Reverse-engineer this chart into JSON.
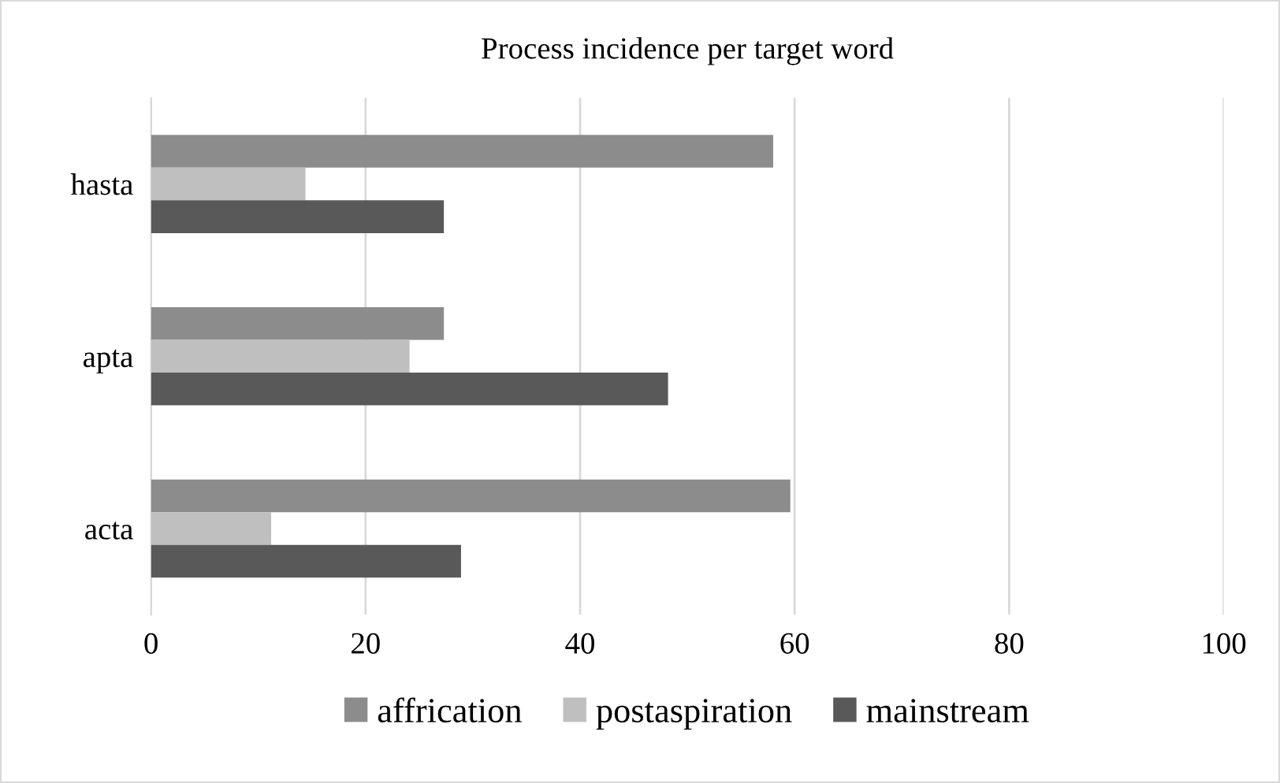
{
  "chart_data": {
    "type": "bar",
    "orientation": "horizontal",
    "title": "Process incidence per target word",
    "categories": [
      "hasta",
      "apta",
      "acta"
    ],
    "series": [
      {
        "name": "affrication",
        "color": "#8c8c8c",
        "values": [
          58.0,
          27.3,
          59.6
        ]
      },
      {
        "name": "postaspiration",
        "color": "#bfbfbf",
        "values": [
          14.4,
          24.1,
          11.2
        ]
      },
      {
        "name": "mainstream",
        "color": "#595959",
        "values": [
          27.3,
          48.2,
          28.9
        ]
      }
    ],
    "xlim": [
      0,
      100
    ],
    "xticks": [
      0,
      20,
      40,
      60,
      80,
      100
    ],
    "grid": "x",
    "legend": "bottom"
  }
}
